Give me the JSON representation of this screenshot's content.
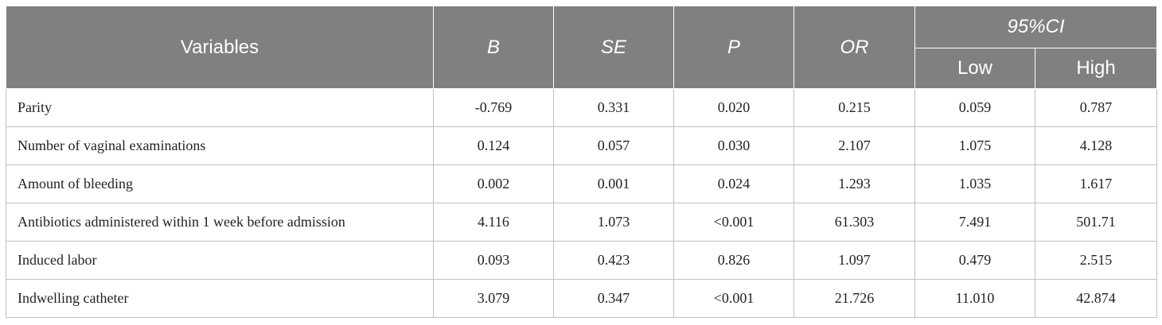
{
  "header": {
    "variables": "Variables",
    "b": "B",
    "se": "SE",
    "p": "P",
    "or": "OR",
    "ci": "95%CI",
    "low": "Low",
    "high": "High"
  },
  "rows": [
    {
      "variable": "Parity",
      "b": "-0.769",
      "se": "0.331",
      "p": "0.020",
      "or": "0.215",
      "low": "0.059",
      "high": "0.787"
    },
    {
      "variable": "Number of vaginal examinations",
      "b": "0.124",
      "se": "0.057",
      "p": "0.030",
      "or": "2.107",
      "low": "1.075",
      "high": "4.128"
    },
    {
      "variable": "Amount of bleeding",
      "b": "0.002",
      "se": "0.001",
      "p": "0.024",
      "or": "1.293",
      "low": "1.035",
      "high": "1.617"
    },
    {
      "variable": "Antibiotics administered within 1 week before admission",
      "b": "4.116",
      "se": "1.073",
      "p": "<0.001",
      "or": "61.303",
      "low": "7.491",
      "high": "501.71"
    },
    {
      "variable": "Induced labor",
      "b": "0.093",
      "se": "0.423",
      "p": "0.826",
      "or": "1.097",
      "low": "0.479",
      "high": "2.515"
    },
    {
      "variable": "Indwelling catheter",
      "b": "3.079",
      "se": "0.347",
      "p": "<0.001",
      "or": "21.726",
      "low": "11.010",
      "high": "42.874"
    }
  ]
}
